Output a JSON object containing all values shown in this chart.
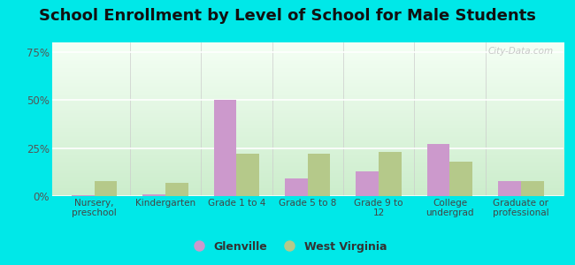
{
  "title": "School Enrollment by Level of School for Male Students",
  "categories": [
    "Nursery,\npreschool",
    "Kindergarten",
    "Grade 1 to 4",
    "Grade 5 to 8",
    "Grade 9 to\n12",
    "College\nundergrad",
    "Graduate or\nprofessional"
  ],
  "glenville": [
    0.5,
    1.0,
    50.0,
    9.0,
    13.0,
    27.0,
    8.0
  ],
  "west_virginia": [
    8.0,
    7.0,
    22.0,
    22.0,
    23.0,
    18.0,
    8.0
  ],
  "glenville_color": "#cc99cc",
  "wv_color": "#b5c98a",
  "background_outer": "#00e8e8",
  "background_inner_top": "#f0faf0",
  "background_inner_bottom": "#c8e8c8",
  "ylim": [
    0,
    80
  ],
  "yticks": [
    0,
    25,
    50,
    75
  ],
  "ytick_labels": [
    "0%",
    "25%",
    "50%",
    "75%"
  ],
  "title_fontsize": 13,
  "legend_labels": [
    "Glenville",
    "West Virginia"
  ],
  "watermark": "City-Data.com"
}
